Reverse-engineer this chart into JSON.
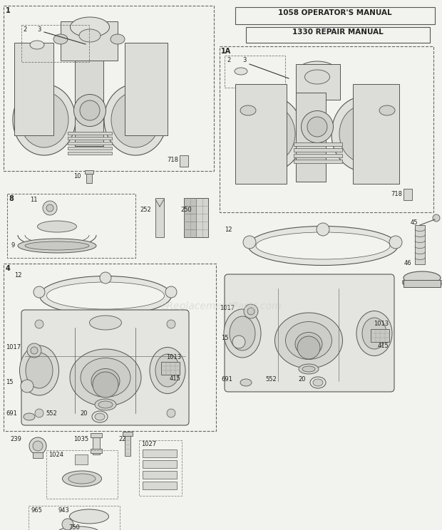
{
  "bg_color": "#f2f2ee",
  "line_color": "#555555",
  "dark_color": "#333333",
  "light_fill": "#e8e8e4",
  "mid_fill": "#d8d8d4",
  "manual_box1": "1058 OPERATOR'S MANUAL",
  "manual_box2": "1330 REPAIR MANUAL",
  "watermark": "eReplacementParts.com",
  "fig_w": 6.2,
  "fig_h": 7.44,
  "dpi": 100
}
